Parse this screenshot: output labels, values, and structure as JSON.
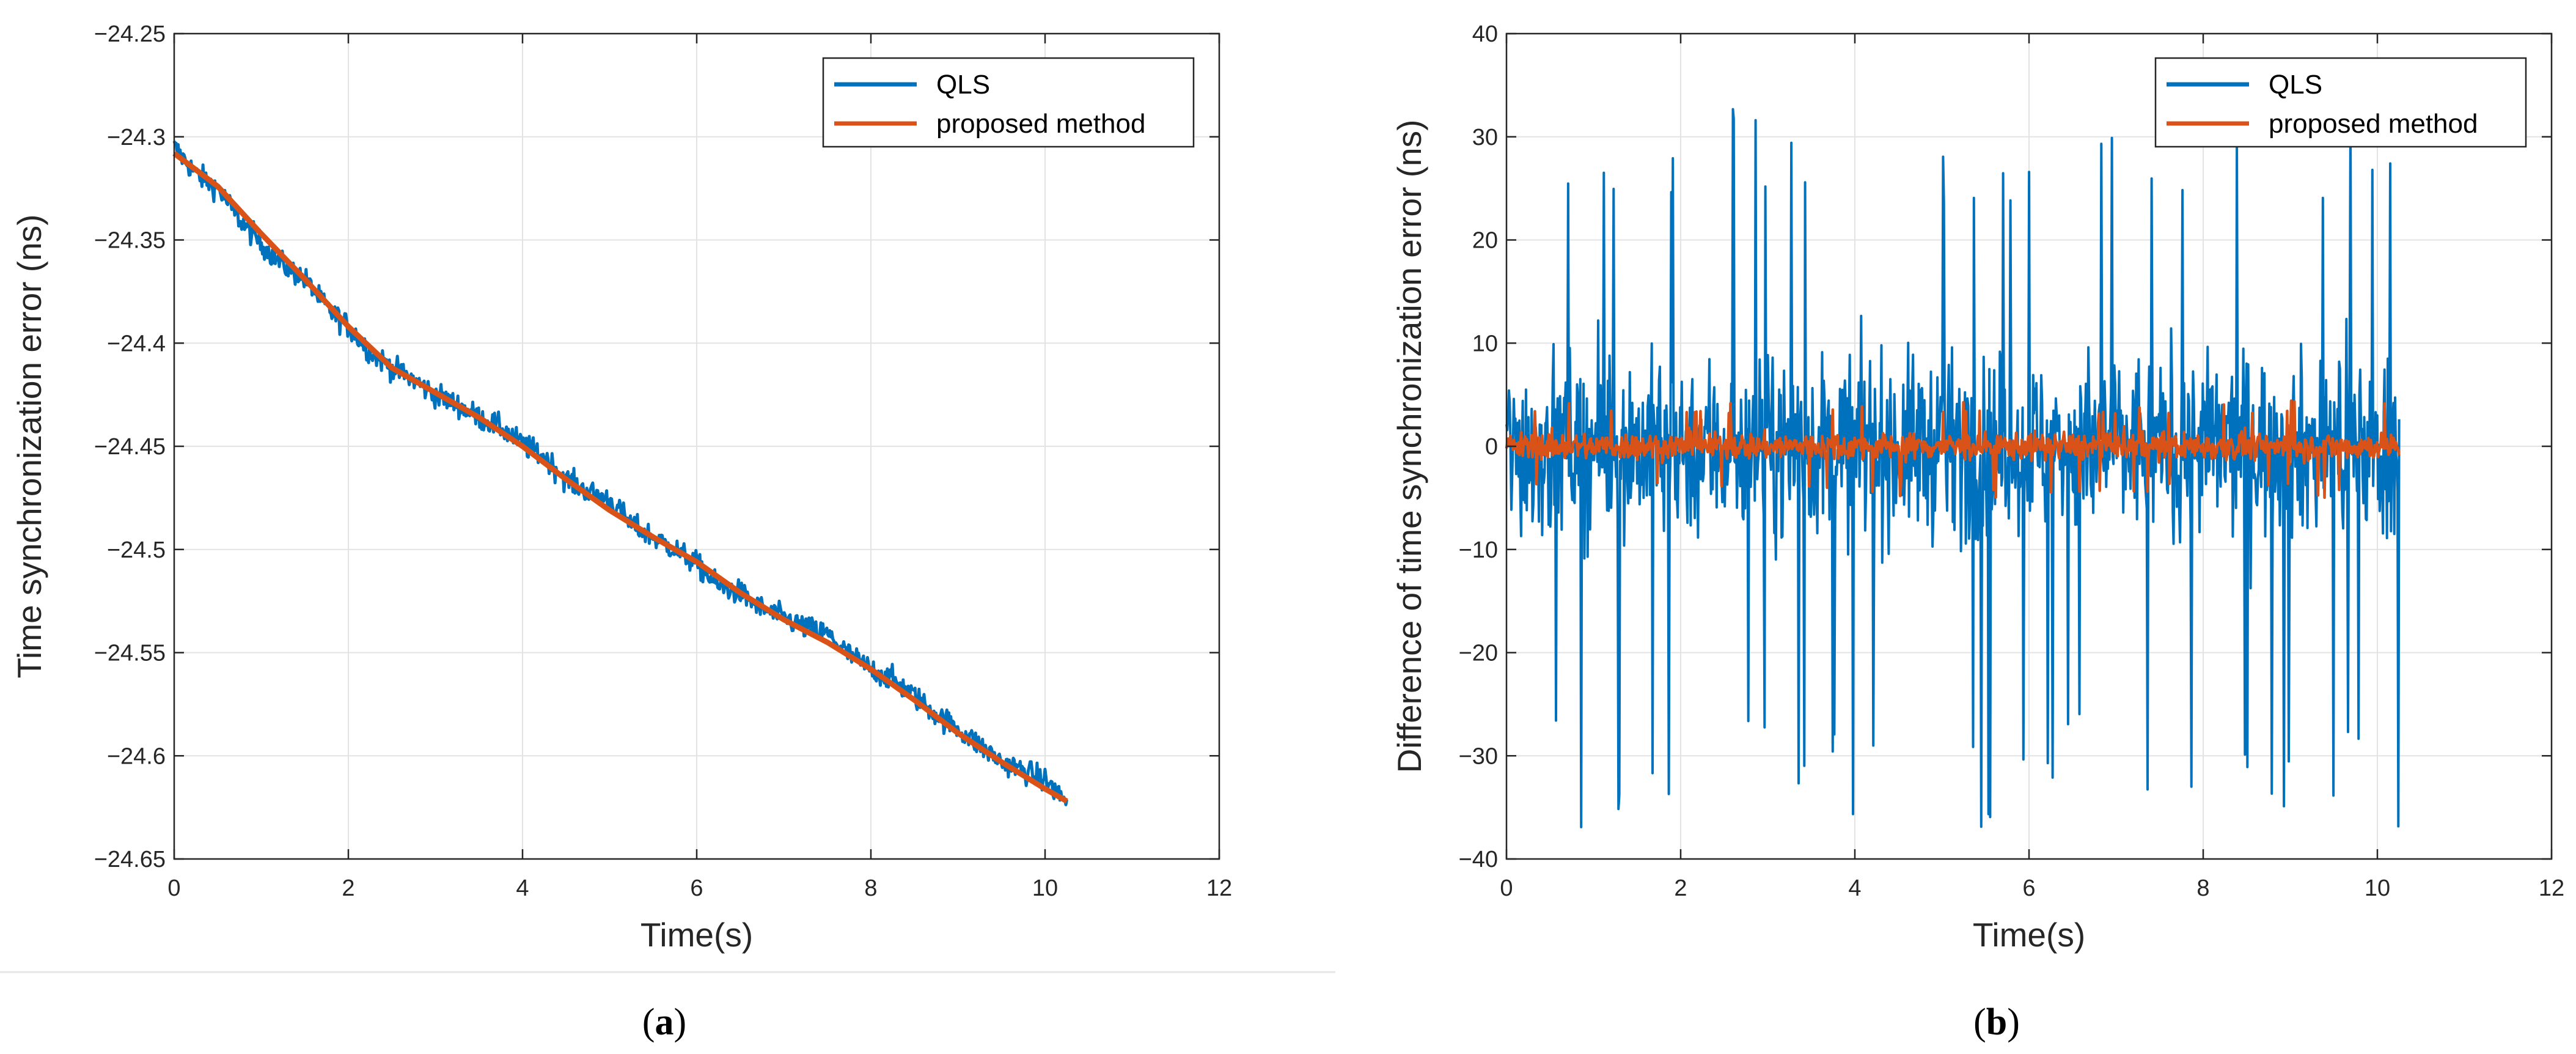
{
  "chart_data": [
    {
      "id": "a",
      "type": "line",
      "caption_open": "(",
      "caption_letter": "a",
      "caption_close": ")",
      "xlabel": "Time(s)",
      "ylabel": "Time synchronization error (ns)",
      "xlim": [
        0,
        12
      ],
      "ylim": [
        -24.65,
        -24.25
      ],
      "xticks": [
        0,
        2,
        4,
        6,
        8,
        10,
        12
      ],
      "yticks": [
        -24.65,
        -24.6,
        -24.55,
        -24.5,
        -24.45,
        -24.4,
        -24.35,
        -24.3,
        -24.25
      ],
      "ytick_labels": [
        "−24.65",
        "−24.6",
        "−24.55",
        "−24.5",
        "−24.45",
        "−24.4",
        "−24.35",
        "−24.3",
        "−24.25"
      ],
      "grid": true,
      "legend_position": "top-right",
      "series": [
        {
          "name": "QLS",
          "color": "#0072BD",
          "x": [
            0,
            0.25,
            0.5,
            0.75,
            1,
            1.25,
            1.5,
            1.75,
            2,
            2.25,
            2.5,
            2.75,
            3,
            3.25,
            3.5,
            3.75,
            4,
            4.25,
            4.5,
            4.75,
            5,
            5.25,
            5.5,
            5.75,
            6,
            6.25,
            6.5,
            6.75,
            7,
            7.25,
            7.5,
            7.75,
            8,
            8.25,
            8.5,
            8.75,
            9,
            9.25,
            9.5,
            9.75,
            10,
            10.25
          ],
          "values": [
            -24.305,
            -24.318,
            -24.325,
            -24.34,
            -24.352,
            -24.362,
            -24.369,
            -24.383,
            -24.392,
            -24.404,
            -24.412,
            -24.418,
            -24.425,
            -24.43,
            -24.436,
            -24.441,
            -24.449,
            -24.455,
            -24.466,
            -24.472,
            -24.476,
            -24.488,
            -24.494,
            -24.5,
            -24.507,
            -24.518,
            -24.521,
            -24.529,
            -24.533,
            -24.538,
            -24.541,
            -24.551,
            -24.558,
            -24.563,
            -24.571,
            -24.58,
            -24.587,
            -24.595,
            -24.603,
            -24.607,
            -24.612,
            -24.622
          ],
          "noise_amplitude": 0.01
        },
        {
          "name": "proposed method",
          "color": "#D95319",
          "x": [
            0,
            0.5,
            1,
            1.5,
            2,
            2.5,
            3,
            3.5,
            4,
            4.5,
            5,
            5.5,
            6,
            6.5,
            7,
            7.5,
            8,
            8.5,
            9,
            9.5,
            10,
            10.25
          ],
          "values": [
            -24.308,
            -24.324,
            -24.347,
            -24.369,
            -24.392,
            -24.412,
            -24.424,
            -24.436,
            -24.45,
            -24.466,
            -24.481,
            -24.494,
            -24.506,
            -24.521,
            -24.534,
            -24.545,
            -24.558,
            -24.573,
            -24.589,
            -24.603,
            -24.616,
            -24.622
          ]
        }
      ]
    },
    {
      "id": "b",
      "type": "line",
      "caption_open": "(",
      "caption_letter": "b",
      "caption_close": ")",
      "xlabel": "Time(s)",
      "ylabel": "Difference of time synchronization error (ns)",
      "xlim": [
        0,
        12
      ],
      "ylim": [
        -40,
        40
      ],
      "xticks": [
        0,
        2,
        4,
        6,
        8,
        10,
        12
      ],
      "yticks": [
        -40,
        -30,
        -20,
        -10,
        0,
        10,
        20,
        30,
        40
      ],
      "ytick_labels": [
        "−40",
        "−30",
        "−20",
        "−10",
        "0",
        "10",
        "20",
        "30",
        "40"
      ],
      "grid": true,
      "legend_position": "top-right",
      "series": [
        {
          "name": "QLS",
          "color": "#0072BD",
          "x_range": [
            0,
            10.25
          ],
          "mean": 0,
          "amplitude": 12,
          "peak_max": 32.7,
          "peak_min": -37
        },
        {
          "name": "proposed method",
          "color": "#D95319",
          "x_range": [
            0,
            10.25
          ],
          "mean": 0,
          "amplitude": 1.8,
          "peak_max": 4.5,
          "peak_min": -5
        }
      ]
    }
  ]
}
